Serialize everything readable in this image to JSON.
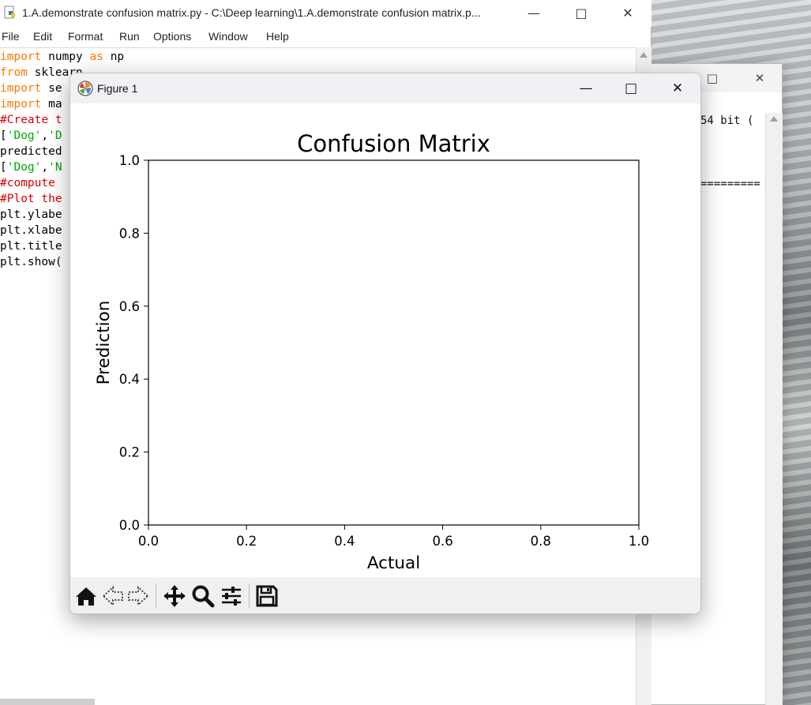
{
  "editor": {
    "title": "1.A.demonstrate confusion matrix.py - C:\\Deep learning\\1.A.demonstrate confusion matrix.p...",
    "menu": [
      "File",
      "Edit",
      "Format",
      "Run",
      "Options",
      "Window",
      "Help"
    ],
    "code_lines": [
      [
        {
          "t": "import",
          "c": "kw"
        },
        {
          "t": " numpy ",
          "c": ""
        },
        {
          "t": "as",
          "c": "kw"
        },
        {
          "t": " np",
          "c": ""
        }
      ],
      [
        {
          "t": "from",
          "c": "kw"
        },
        {
          "t": " sklearn",
          "c": ""
        }
      ],
      [
        {
          "t": "import",
          "c": "kw"
        },
        {
          "t": " se",
          "c": ""
        }
      ],
      [
        {
          "t": "import",
          "c": "kw"
        },
        {
          "t": " ma",
          "c": ""
        }
      ],
      [
        {
          "t": "#Create t",
          "c": "cm"
        }
      ],
      [
        {
          "t": "[",
          "c": ""
        },
        {
          "t": "'Dog'",
          "c": "st"
        },
        {
          "t": ",",
          "c": ""
        },
        {
          "t": "'D",
          "c": "st"
        }
      ],
      [
        {
          "t": "predicted",
          "c": ""
        }
      ],
      [
        {
          "t": "[",
          "c": ""
        },
        {
          "t": "'Dog'",
          "c": "st"
        },
        {
          "t": ",",
          "c": ""
        },
        {
          "t": "'N",
          "c": "st"
        }
      ],
      [
        {
          "t": "#compute ",
          "c": "cm"
        }
      ],
      [
        {
          "t": "#Plot the",
          "c": "cm"
        }
      ],
      [
        {
          "t": "plt.ylabe",
          "c": ""
        }
      ],
      [
        {
          "t": "plt.xlabe",
          "c": ""
        }
      ],
      [
        {
          "t": "plt.title",
          "c": ""
        }
      ],
      [
        {
          "t": "plt.show(",
          "c": ""
        }
      ]
    ]
  },
  "shell": {
    "version_fragment": "54 bit (",
    "restart_fragment": "========="
  },
  "figure": {
    "title": "Figure 1",
    "minimize": "—",
    "maximize": "□",
    "close": "✕"
  },
  "chart_data": {
    "type": "scatter",
    "title": "Confusion Matrix",
    "xlabel": "Actual",
    "ylabel": "Prediction",
    "xlim": [
      0.0,
      1.0
    ],
    "ylim": [
      0.0,
      1.0
    ],
    "xticks": [
      "0.0",
      "0.2",
      "0.4",
      "0.6",
      "0.8",
      "1.0"
    ],
    "yticks": [
      "0.0",
      "0.2",
      "0.4",
      "0.6",
      "0.8",
      "1.0"
    ],
    "grid": false,
    "series": []
  },
  "toolbar": {
    "buttons": [
      "home-icon",
      "back-arrow-icon",
      "forward-arrow-icon",
      "pan-icon",
      "zoom-icon",
      "configure-subplots-icon",
      "save-icon"
    ]
  },
  "colors": {
    "keyword": "#ff7700",
    "comment": "#dd0000",
    "string": "#00aa00"
  }
}
